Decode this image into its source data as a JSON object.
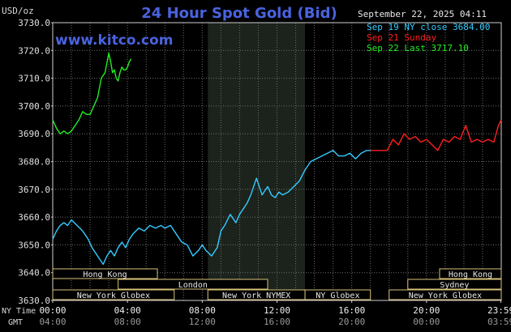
{
  "chart_data": {
    "type": "line",
    "title": "24 Hour Spot Gold (Bid)",
    "ylabel": "USD/oz",
    "website": "www.kitco.com",
    "timestamp": "September 22, 2025 04:11",
    "ylim": [
      3630,
      3730
    ],
    "y_ticks": [
      "3730.0",
      "3720.0",
      "3710.0",
      "3700.0",
      "3690.0",
      "3680.0",
      "3670.0",
      "3660.0",
      "3650.0",
      "3640.0",
      "3630.0"
    ],
    "x_range_hours": [
      0,
      24
    ],
    "x_ticks_ny": [
      "00:00",
      "04:00",
      "08:00",
      "12:00",
      "16:00",
      "20:00",
      "23:59"
    ],
    "x_ticks_gmt": [
      "04:00",
      "08:00",
      "12:00",
      "16:00",
      "20:00",
      "00:00",
      "03:59"
    ],
    "x_tick_hours": [
      0,
      4,
      8,
      12,
      16,
      20,
      23.98
    ],
    "row_labels": {
      "ny_time": "NY Time",
      "gmt": "GMT"
    },
    "legend": [
      {
        "text": "Sep 19 NY close 3684.00",
        "color": "#33ccff"
      },
      {
        "text": "Sep 21 Sunday",
        "color": "#ff2020"
      },
      {
        "text": "Sep 22 Last 3717.10",
        "color": "#22ee22"
      }
    ],
    "grid": true,
    "shaded_session_hours": [
      8.3,
      13.5
    ],
    "market_sessions": [
      {
        "name": "Hong Kong",
        "start": 0,
        "end": 5.6,
        "row": 0
      },
      {
        "name": "London",
        "start": 3.5,
        "end": 11.5,
        "row": 1
      },
      {
        "name": "New York Globex",
        "start": 0,
        "end": 6.5,
        "row": 2
      },
      {
        "name": "New York NYMEX",
        "start": 8.3,
        "end": 13.5,
        "row": 2
      },
      {
        "name": "NY Globex",
        "start": 13.5,
        "end": 17,
        "row": 2
      },
      {
        "name": "Hong Kong",
        "start": 20.7,
        "end": 24,
        "row": 0
      },
      {
        "name": "Sydney",
        "start": 19,
        "end": 24,
        "row": 1
      },
      {
        "name": "New York Globex",
        "start": 18,
        "end": 24,
        "row": 2
      }
    ],
    "series": [
      {
        "name": "Sep 19 NY close 3684.00",
        "color": "#33ccff",
        "x": [
          0,
          0.2,
          0.4,
          0.6,
          0.8,
          1.0,
          1.3,
          1.6,
          1.9,
          2.1,
          2.3,
          2.5,
          2.7,
          2.9,
          3.1,
          3.3,
          3.5,
          3.7,
          3.9,
          4.1,
          4.3,
          4.6,
          4.9,
          5.2,
          5.5,
          5.8,
          6.0,
          6.3,
          6.6,
          6.9,
          7.2,
          7.5,
          7.8,
          8.0,
          8.2,
          8.5,
          8.8,
          9.0,
          9.2,
          9.5,
          9.8,
          10.0,
          10.2,
          10.4,
          10.6,
          10.9,
          11.2,
          11.5,
          11.7,
          11.9,
          12.1,
          12.3,
          12.6,
          12.9,
          13.2,
          13.5,
          13.8,
          14.1,
          14.4,
          14.7,
          15.0,
          15.3,
          15.6,
          15.9,
          16.2,
          16.5,
          16.8,
          17.0
        ],
        "values": [
          3652,
          3655,
          3657,
          3658,
          3657,
          3659,
          3657,
          3655,
          3652,
          3649,
          3647,
          3645,
          3643,
          3646,
          3648,
          3646,
          3649,
          3651,
          3649,
          3652,
          3654,
          3656,
          3655,
          3657,
          3656,
          3657,
          3656,
          3657,
          3654,
          3651,
          3650,
          3646,
          3648,
          3650,
          3648,
          3646,
          3649,
          3655,
          3657,
          3661,
          3658,
          3661,
          3663,
          3665,
          3668,
          3674,
          3668,
          3671,
          3668,
          3667,
          3669,
          3668,
          3669,
          3671,
          3673,
          3677,
          3680,
          3681,
          3682,
          3683,
          3684,
          3682,
          3682,
          3683,
          3681,
          3683,
          3684,
          3684
        ]
      },
      {
        "name": "Sep 21 Sunday",
        "color": "#ff2020",
        "x": [
          17.0,
          17.5,
          17.9,
          18.2,
          18.5,
          18.8,
          19.1,
          19.4,
          19.7,
          20.0,
          20.3,
          20.6,
          20.9,
          21.2,
          21.5,
          21.8,
          22.1,
          22.4,
          22.7,
          23.0,
          23.3,
          23.6,
          23.85,
          24.0
        ],
        "values": [
          3684,
          3684,
          3684,
          3688,
          3686,
          3690,
          3688,
          3689,
          3687,
          3688,
          3686,
          3684,
          3688,
          3687,
          3689,
          3688,
          3693,
          3687,
          3688,
          3687,
          3688,
          3687,
          3693,
          3695
        ]
      },
      {
        "name": "Sep 22 Last 3717.10",
        "color": "#22ee22",
        "x": [
          0,
          0.2,
          0.4,
          0.6,
          0.8,
          1.0,
          1.2,
          1.4,
          1.6,
          1.8,
          2.0,
          2.2,
          2.4,
          2.6,
          2.8,
          3.0,
          3.1,
          3.2,
          3.3,
          3.4,
          3.5,
          3.6,
          3.7,
          3.8,
          3.9,
          4.0,
          4.1,
          4.2
        ],
        "values": [
          3695,
          3692,
          3690,
          3691,
          3690,
          3691,
          3693,
          3695,
          3698,
          3697,
          3697,
          3700,
          3703,
          3710,
          3712,
          3719,
          3716,
          3712,
          3713,
          3710,
          3709,
          3712,
          3714,
          3713,
          3713,
          3714,
          3716,
          3717
        ]
      }
    ]
  }
}
